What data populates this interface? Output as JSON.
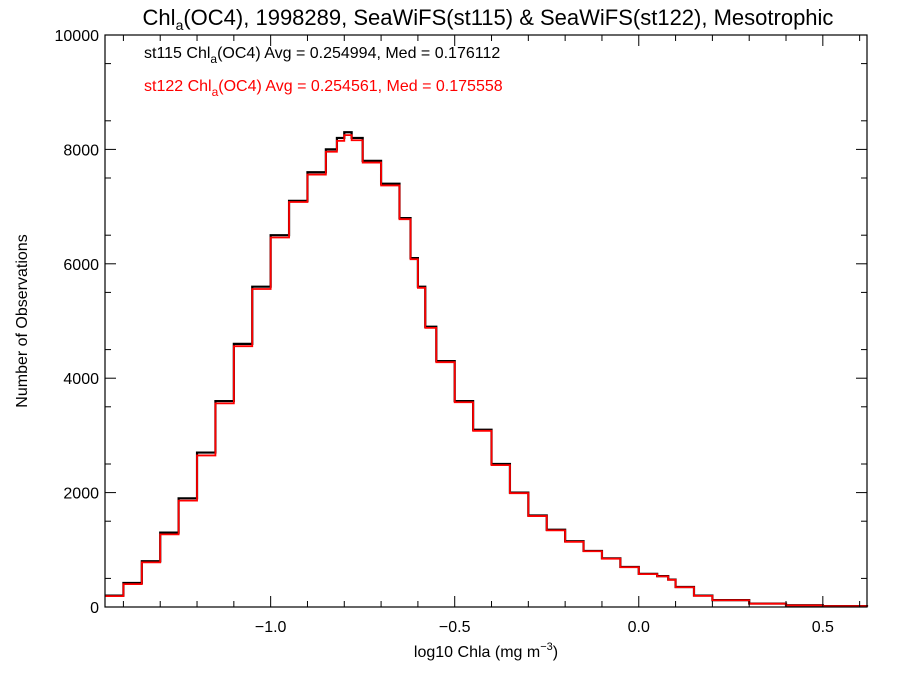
{
  "chart_data": {
    "type": "line",
    "title_main": "Chl",
    "title_sub": "a",
    "title_rest": "(OC4), 1998289, SeaWiFS(st115) & SeaWiFS(st122), Mesotrophic",
    "xlabel_main": "log10 Chla (mg m",
    "xlabel_sup": "−3",
    "xlabel_close": ")",
    "ylabel": "Number of Observations",
    "xlim": [
      -1.45,
      0.62
    ],
    "ylim": [
      0,
      10000
    ],
    "x_ticks": [
      -1.0,
      -0.5,
      0.0,
      0.5
    ],
    "x_tick_labels": [
      "−1.0",
      "−0.5",
      "0.0",
      "0.5"
    ],
    "y_ticks": [
      0,
      2000,
      4000,
      6000,
      8000,
      10000
    ],
    "y_tick_labels": [
      "0",
      "2000",
      "4000",
      "6000",
      "8000",
      "10000"
    ],
    "grid": false,
    "legend_position": "top-left",
    "series": [
      {
        "name_pre": "st115 Chl",
        "name_sub": "a",
        "name_post": "(OC4) Avg = 0.254994, Med = 0.176112",
        "color": "#000000",
        "x": [
          -1.45,
          -1.4,
          -1.35,
          -1.3,
          -1.25,
          -1.2,
          -1.15,
          -1.1,
          -1.05,
          -1.0,
          -0.95,
          -0.9,
          -0.85,
          -0.82,
          -0.8,
          -0.78,
          -0.75,
          -0.7,
          -0.65,
          -0.62,
          -0.6,
          -0.58,
          -0.55,
          -0.5,
          -0.45,
          -0.4,
          -0.35,
          -0.3,
          -0.25,
          -0.2,
          -0.15,
          -0.1,
          -0.05,
          0.0,
          0.05,
          0.08,
          0.1,
          0.15,
          0.2,
          0.3,
          0.4,
          0.5,
          0.62
        ],
        "y": [
          200,
          420,
          800,
          1300,
          1900,
          2700,
          3600,
          4600,
          5600,
          6500,
          7100,
          7600,
          8000,
          8200,
          8300,
          8200,
          7800,
          7400,
          6800,
          6100,
          5600,
          4900,
          4300,
          3600,
          3100,
          2500,
          2000,
          1600,
          1350,
          1150,
          980,
          850,
          700,
          580,
          540,
          480,
          350,
          200,
          120,
          60,
          30,
          15,
          5
        ]
      },
      {
        "name_pre": "st122 Chl",
        "name_sub": "a",
        "name_post": "(OC4) Avg = 0.254561, Med = 0.175558",
        "color": "#ff0000",
        "x": [
          -1.45,
          -1.4,
          -1.35,
          -1.3,
          -1.25,
          -1.2,
          -1.15,
          -1.1,
          -1.05,
          -1.0,
          -0.95,
          -0.9,
          -0.85,
          -0.82,
          -0.8,
          -0.78,
          -0.75,
          -0.7,
          -0.65,
          -0.62,
          -0.6,
          -0.58,
          -0.55,
          -0.5,
          -0.45,
          -0.4,
          -0.35,
          -0.3,
          -0.25,
          -0.2,
          -0.15,
          -0.1,
          -0.05,
          0.0,
          0.05,
          0.08,
          0.1,
          0.15,
          0.2,
          0.3,
          0.4,
          0.5,
          0.62
        ],
        "y": [
          190,
          400,
          780,
          1270,
          1860,
          2650,
          3560,
          4560,
          5560,
          6460,
          7080,
          7560,
          7960,
          8150,
          8250,
          8160,
          7770,
          7370,
          6780,
          6080,
          5580,
          4880,
          4280,
          3580,
          3080,
          2480,
          1990,
          1590,
          1340,
          1140,
          975,
          845,
          695,
          575,
          535,
          475,
          345,
          195,
          118,
          58,
          29,
          14,
          5
        ]
      }
    ]
  }
}
